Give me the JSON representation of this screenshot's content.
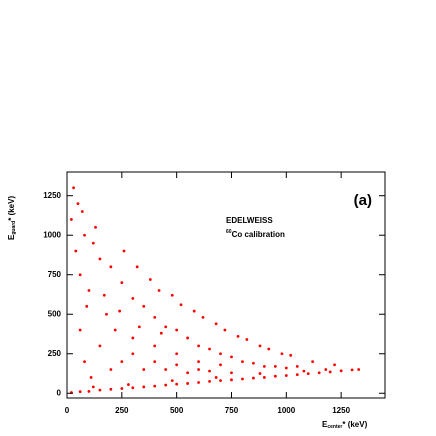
{
  "chart_data": {
    "type": "scatter",
    "labels": {
      "panel": "(a)",
      "experiment": "EDELWEISS",
      "source_mass": "60",
      "source": "Co calibration"
    },
    "xlabel": {
      "symbol": "E",
      "subscript": "center",
      "rest": "* (keV)"
    },
    "ylabel": {
      "symbol": "E",
      "subscript": "guard",
      "rest": "* (keV)"
    },
    "xlim": [
      0,
      1450
    ],
    "ylim": [
      -30,
      1400
    ],
    "xticks": [
      0,
      250,
      500,
      750,
      1000,
      1250
    ],
    "yticks": [
      0,
      250,
      500,
      750,
      1000,
      1250
    ],
    "color": "#ff0000",
    "x": [
      20,
      60,
      100,
      150,
      200,
      250,
      300,
      350,
      400,
      450,
      500,
      550,
      600,
      650,
      700,
      750,
      800,
      850,
      900,
      950,
      1000,
      1050,
      1100,
      1150,
      1200,
      1250,
      1300,
      1330,
      120,
      280,
      480,
      680,
      880,
      1080,
      1180,
      30,
      50,
      20,
      80,
      40,
      120,
      150,
      60,
      200,
      250,
      100,
      300,
      350,
      180,
      400,
      450,
      220,
      500,
      550,
      600,
      650,
      700,
      750,
      800,
      850,
      900,
      950,
      1000,
      1050,
      300,
      400,
      500,
      600,
      700,
      150,
      80,
      250,
      350,
      450,
      550,
      650,
      750,
      130,
      70,
      260,
      320,
      420,
      520,
      620,
      720,
      820,
      920,
      1020,
      1120,
      1220,
      380,
      480,
      580,
      680,
      780,
      880,
      980,
      90,
      170,
      240,
      330,
      430,
      60,
      110,
      200,
      300,
      400,
      500,
      600
    ],
    "y": [
      5,
      10,
      12,
      20,
      25,
      30,
      35,
      40,
      45,
      52,
      58,
      62,
      68,
      75,
      80,
      85,
      90,
      96,
      100,
      108,
      112,
      118,
      124,
      130,
      135,
      142,
      148,
      150,
      40,
      55,
      80,
      100,
      125,
      140,
      150,
      1300,
      1200,
      1100,
      1000,
      900,
      950,
      850,
      750,
      800,
      700,
      650,
      600,
      550,
      500,
      480,
      420,
      400,
      400,
      350,
      300,
      280,
      250,
      230,
      200,
      190,
      170,
      170,
      160,
      170,
      350,
      300,
      250,
      200,
      180,
      300,
      200,
      200,
      150,
      150,
      130,
      140,
      130,
      1050,
      1150,
      900,
      800,
      650,
      560,
      480,
      400,
      340,
      280,
      240,
      200,
      180,
      720,
      620,
      520,
      440,
      360,
      300,
      250,
      550,
      620,
      520,
      420,
      380,
      400,
      100,
      150,
      250,
      200,
      180,
      150
    ]
  }
}
